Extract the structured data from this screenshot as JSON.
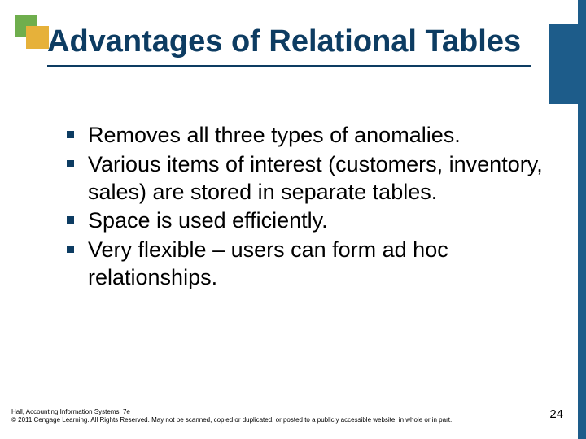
{
  "colors": {
    "square_green": "#6fae4d",
    "square_amber": "#e6b13a",
    "title_text": "#0d3c62",
    "title_underline": "#0d3c62",
    "side_accent": "#1d5c8a",
    "bullet_square": "#0d3c62",
    "body_text": "#000000",
    "right_strip": "#1d5c8a"
  },
  "title": {
    "text": "Advantages of Relational Tables",
    "fontsize": 38,
    "fontweight": 700
  },
  "bullets": {
    "items": [
      "Removes all three types of anomalies.",
      "Various items of interest (customers, inventory, sales) are stored in separate tables.",
      "Space is used efficiently.",
      "Very flexible – users can form ad hoc relationships."
    ],
    "fontsize": 27,
    "marker_size": 9,
    "marker_color": "#0d3c62"
  },
  "footer": {
    "line1": "Hall, Accounting Information Systems, 7e",
    "line2": "© 2011 Cengage Learning. All Rights Reserved. May not be scanned, copied or duplicated, or posted to a publicly accessible website, in whole or in part."
  },
  "page_number": "24"
}
